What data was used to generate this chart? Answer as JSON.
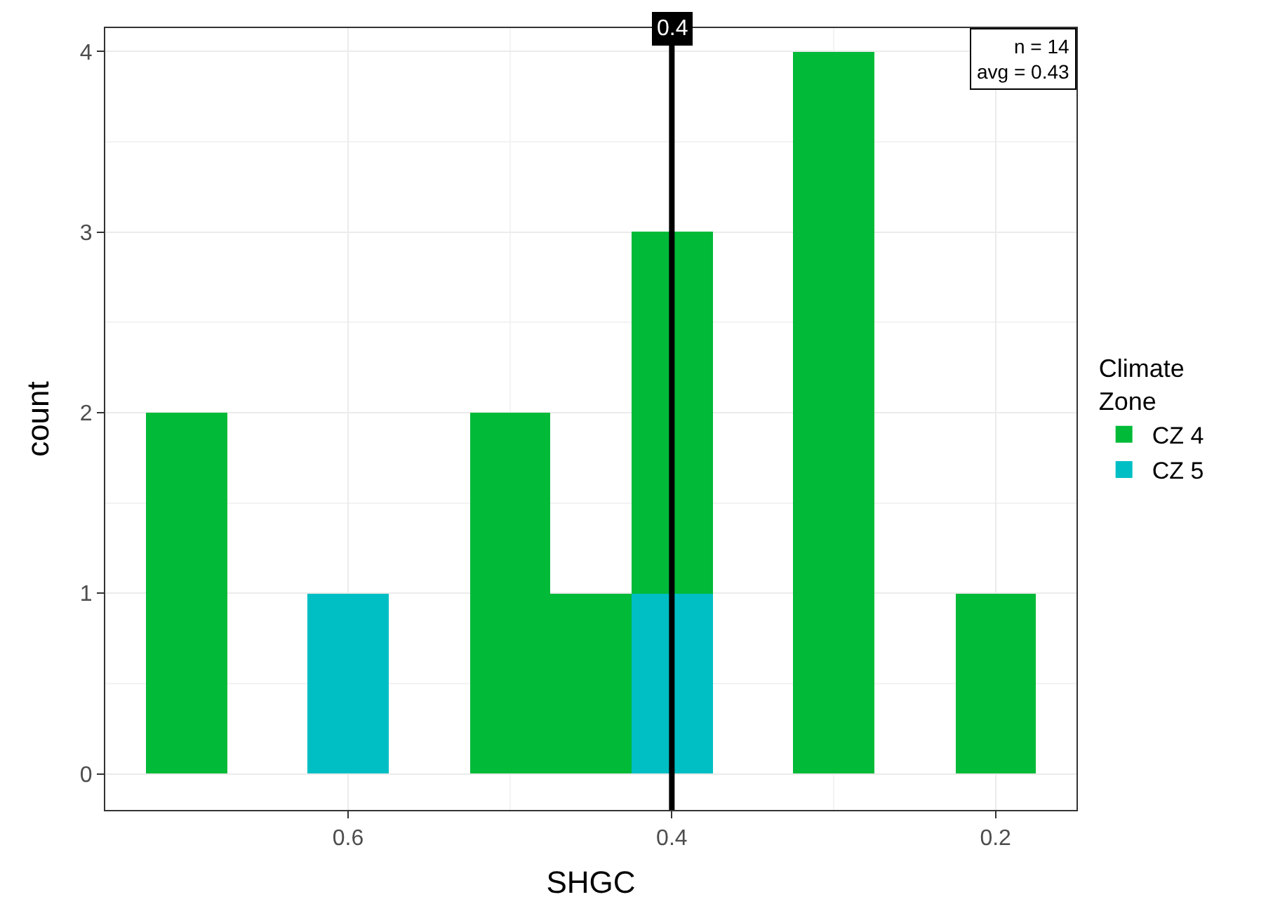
{
  "chart_data": {
    "type": "bar",
    "xlabel": "SHGC",
    "ylabel": "count",
    "legend_title": "Climate\nZone",
    "x": [
      0.2,
      0.25,
      0.3,
      0.35,
      0.4,
      0.45,
      0.5,
      0.55,
      0.6,
      0.65,
      0.7
    ],
    "stacked": true,
    "series": [
      {
        "name": "CZ 5",
        "color": "#00bfc4",
        "values": [
          0,
          0,
          0,
          0,
          1,
          0,
          0,
          0,
          1,
          0,
          0
        ]
      },
      {
        "name": "CZ 4",
        "color": "#00ba38",
        "values": [
          1,
          0,
          4,
          0,
          2,
          1,
          2,
          0,
          0,
          0,
          2
        ]
      }
    ],
    "xlim": [
      0.75,
      0.15
    ],
    "xticks": [
      0.6,
      0.4,
      0.2
    ],
    "ylim": [
      -0.2,
      4.13
    ],
    "yticks": [
      0,
      1,
      2,
      3,
      4
    ],
    "grid": true,
    "legend": "right",
    "ref_lines": [
      {
        "axis": "x",
        "value": 0.4,
        "label": "0.4",
        "color": "#000000"
      }
    ],
    "annotations": [
      "n = 14",
      "avg = 0.43"
    ]
  }
}
